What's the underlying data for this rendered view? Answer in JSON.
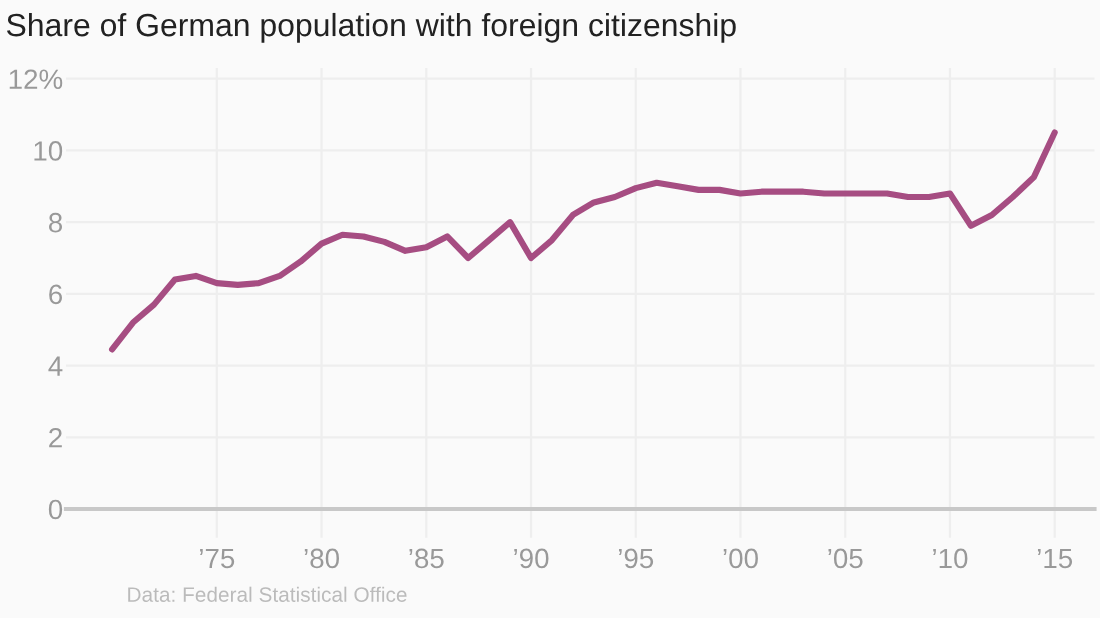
{
  "chart_data": {
    "type": "line",
    "title": "Share of German population with foreign citizenship",
    "x": [
      1970,
      1971,
      1972,
      1973,
      1974,
      1975,
      1976,
      1977,
      1978,
      1979,
      1980,
      1981,
      1982,
      1983,
      1984,
      1985,
      1986,
      1987,
      1988,
      1989,
      1990,
      1991,
      1992,
      1993,
      1994,
      1995,
      1996,
      1997,
      1998,
      1999,
      2000,
      2001,
      2002,
      2003,
      2004,
      2005,
      2006,
      2007,
      2008,
      2009,
      2010,
      2011,
      2012,
      2013,
      2014,
      2015
    ],
    "series": [
      {
        "color": "#a64d82",
        "values": [
          4.45,
          5.2,
          5.7,
          6.4,
          6.5,
          6.3,
          6.25,
          6.3,
          6.5,
          6.9,
          7.4,
          7.65,
          7.6,
          7.45,
          7.2,
          7.3,
          7.6,
          7.0,
          7.5,
          8.0,
          7.0,
          7.5,
          8.2,
          8.55,
          8.7,
          8.95,
          9.1,
          9.0,
          8.9,
          8.9,
          8.8,
          8.85,
          8.85,
          8.85,
          8.8,
          8.8,
          8.8,
          8.8,
          8.7,
          8.7,
          8.8,
          7.9,
          8.2,
          8.7,
          9.25,
          10.5
        ]
      }
    ],
    "xlim": [
      1967.8,
      2016.9
    ],
    "ylim": [
      -0.8,
      12.3
    ],
    "xticks": [
      {
        "value": 1975,
        "label": "’75"
      },
      {
        "value": 1980,
        "label": "’80"
      },
      {
        "value": 1985,
        "label": "’85"
      },
      {
        "value": 1990,
        "label": "’90"
      },
      {
        "value": 1995,
        "label": "’95"
      },
      {
        "value": 2000,
        "label": "’00"
      },
      {
        "value": 2005,
        "label": "’05"
      },
      {
        "value": 2010,
        "label": "’10"
      },
      {
        "value": 2015,
        "label": "’15"
      }
    ],
    "yticks": [
      0,
      2,
      4,
      6,
      8,
      10,
      {
        "value": 12,
        "label": "12%"
      }
    ],
    "grid": true,
    "line_style": "solid",
    "marker": "none",
    "annotations": [
      "Data: Federal Statistical Office"
    ]
  }
}
